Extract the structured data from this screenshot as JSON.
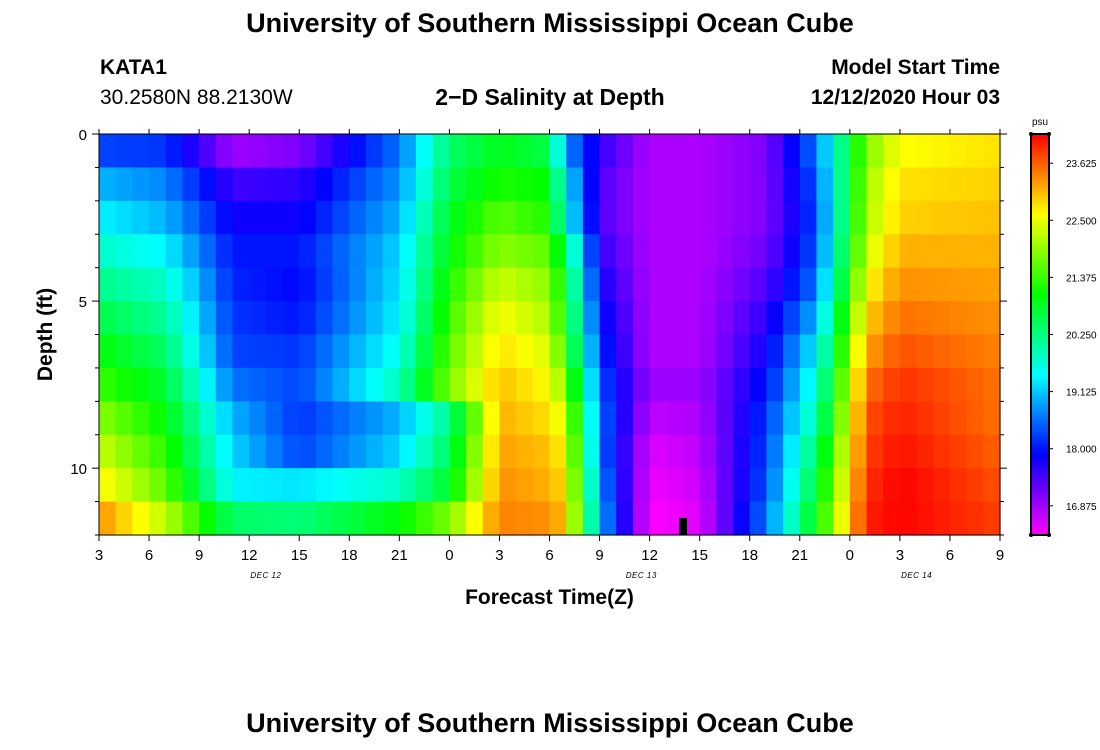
{
  "header": {
    "title": "University of Southern Mississippi Ocean Cube",
    "station_id": "KATA1",
    "station_coords": "30.2580N 88.2130W",
    "plot_title": "2−D Salinity at Depth",
    "model_start_label": "Model Start Time",
    "model_start_value": "12/12/2020 Hour 03"
  },
  "footer": {
    "title": "University of Southern Mississippi Ocean Cube"
  },
  "colors": {
    "marker": "#000000",
    "frame": "#000000"
  },
  "chart_data": {
    "type": "heatmap",
    "title": "2−D Salinity at Depth",
    "xlabel": "Forecast Time(Z)",
    "ylabel": "Depth (ft)",
    "units": "psu",
    "x_range_hours": [
      0,
      54
    ],
    "x_ticks": [
      {
        "h": 0,
        "label": "3"
      },
      {
        "h": 3,
        "label": "6"
      },
      {
        "h": 6,
        "label": "9"
      },
      {
        "h": 9,
        "label": "12"
      },
      {
        "h": 12,
        "label": "15"
      },
      {
        "h": 15,
        "label": "18"
      },
      {
        "h": 18,
        "label": "21"
      },
      {
        "h": 21,
        "label": "0"
      },
      {
        "h": 24,
        "label": "3"
      },
      {
        "h": 27,
        "label": "6"
      },
      {
        "h": 30,
        "label": "9"
      },
      {
        "h": 33,
        "label": "12"
      },
      {
        "h": 36,
        "label": "15"
      },
      {
        "h": 39,
        "label": "18"
      },
      {
        "h": 42,
        "label": "21"
      },
      {
        "h": 45,
        "label": "0"
      },
      {
        "h": 48,
        "label": "3"
      },
      {
        "h": 51,
        "label": "6"
      },
      {
        "h": 54,
        "label": "9"
      }
    ],
    "day_labels": [
      {
        "h": 10,
        "label": "DEC 12"
      },
      {
        "h": 32.5,
        "label": "DEC 13"
      },
      {
        "h": 49,
        "label": "DEC 14"
      }
    ],
    "y_range_ft": [
      0,
      12
    ],
    "y_ticks": [
      0,
      5,
      10
    ],
    "current_time_marker_h": 35,
    "colorbar": {
      "label": "psu",
      "min": 16.3,
      "max": 24.2,
      "ticks": [
        "16.875",
        "18.000",
        "19.125",
        "20.250",
        "21.375",
        "22.500",
        "23.625"
      ]
    },
    "depth_rows_ft": [
      0.5,
      1.5,
      2.5,
      3.5,
      4.5,
      5.5,
      6.5,
      7.5,
      8.5,
      9.5,
      10.5,
      11.5
    ],
    "series": [
      {
        "depth_ft": 0.5,
        "keyframes": [
          [
            0,
            18.3
          ],
          [
            4,
            18.2
          ],
          [
            8,
            16.9
          ],
          [
            12,
            17.1
          ],
          [
            18,
            18.6
          ],
          [
            21,
            20.4
          ],
          [
            24,
            20.9
          ],
          [
            27,
            20.6
          ],
          [
            28,
            18.8
          ],
          [
            30,
            17.6
          ],
          [
            33,
            16.8
          ],
          [
            36,
            16.8
          ],
          [
            40,
            17.1
          ],
          [
            43,
            18.6
          ],
          [
            46,
            21.8
          ],
          [
            48,
            22.6
          ],
          [
            54,
            22.8
          ]
        ]
      },
      {
        "depth_ft": 1.5,
        "keyframes": [
          [
            0,
            19.0
          ],
          [
            4,
            18.7
          ],
          [
            8,
            17.5
          ],
          [
            12,
            17.6
          ],
          [
            18,
            18.8
          ],
          [
            21,
            20.6
          ],
          [
            24,
            21.2
          ],
          [
            27,
            21.0
          ],
          [
            28,
            19.4
          ],
          [
            30,
            17.4
          ],
          [
            33,
            16.8
          ],
          [
            36,
            16.8
          ],
          [
            40,
            17.1
          ],
          [
            43,
            18.4
          ],
          [
            46,
            22.0
          ],
          [
            48,
            22.8
          ],
          [
            54,
            22.9
          ]
        ]
      },
      {
        "depth_ft": 2.5,
        "keyframes": [
          [
            0,
            19.4
          ],
          [
            4,
            19.0
          ],
          [
            8,
            17.8
          ],
          [
            12,
            17.8
          ],
          [
            18,
            19.0
          ],
          [
            21,
            20.8
          ],
          [
            24,
            21.6
          ],
          [
            27,
            21.2
          ],
          [
            28,
            19.6
          ],
          [
            30,
            17.4
          ],
          [
            33,
            16.8
          ],
          [
            36,
            16.8
          ],
          [
            40,
            17.1
          ],
          [
            43,
            18.3
          ],
          [
            46,
            22.1
          ],
          [
            48,
            22.9
          ],
          [
            54,
            23.0
          ]
        ]
      },
      {
        "depth_ft": 3.5,
        "keyframes": [
          [
            0,
            19.8
          ],
          [
            4,
            19.4
          ],
          [
            8,
            18.0
          ],
          [
            12,
            18.0
          ],
          [
            18,
            19.2
          ],
          [
            21,
            21.0
          ],
          [
            24,
            21.9
          ],
          [
            27,
            21.6
          ],
          [
            28,
            20.4
          ],
          [
            30,
            17.6
          ],
          [
            33,
            16.8
          ],
          [
            36,
            16.8
          ],
          [
            40,
            17.2
          ],
          [
            43,
            18.4
          ],
          [
            46,
            22.3
          ],
          [
            48,
            23.1
          ],
          [
            54,
            23.1
          ]
        ]
      },
      {
        "depth_ft": 4.5,
        "keyframes": [
          [
            0,
            20.2
          ],
          [
            4,
            19.8
          ],
          [
            8,
            18.1
          ],
          [
            12,
            17.9
          ],
          [
            18,
            19.3
          ],
          [
            21,
            21.2
          ],
          [
            24,
            22.3
          ],
          [
            27,
            21.9
          ],
          [
            28,
            20.8
          ],
          [
            30,
            17.8
          ],
          [
            33,
            16.8
          ],
          [
            36,
            16.8
          ],
          [
            40,
            17.4
          ],
          [
            43,
            18.6
          ],
          [
            46,
            22.6
          ],
          [
            48,
            23.3
          ],
          [
            54,
            23.2
          ]
        ]
      },
      {
        "depth_ft": 5.5,
        "keyframes": [
          [
            0,
            20.6
          ],
          [
            4,
            20.1
          ],
          [
            8,
            18.2
          ],
          [
            12,
            18.0
          ],
          [
            18,
            19.4
          ],
          [
            21,
            21.4
          ],
          [
            24,
            22.6
          ],
          [
            27,
            22.1
          ],
          [
            28,
            21.0
          ],
          [
            30,
            18.0
          ],
          [
            33,
            16.8
          ],
          [
            36,
            16.8
          ],
          [
            40,
            17.6
          ],
          [
            43,
            19.0
          ],
          [
            46,
            22.9
          ],
          [
            48,
            23.5
          ],
          [
            54,
            23.3
          ]
        ]
      },
      {
        "depth_ft": 6.5,
        "keyframes": [
          [
            0,
            21.0
          ],
          [
            4,
            20.4
          ],
          [
            8,
            18.3
          ],
          [
            12,
            18.2
          ],
          [
            18,
            19.6
          ],
          [
            21,
            21.6
          ],
          [
            24,
            22.8
          ],
          [
            27,
            22.4
          ],
          [
            28,
            21.3
          ],
          [
            30,
            18.2
          ],
          [
            33,
            16.8
          ],
          [
            36,
            16.8
          ],
          [
            40,
            17.8
          ],
          [
            43,
            19.4
          ],
          [
            46,
            23.2
          ],
          [
            48,
            23.7
          ],
          [
            54,
            23.4
          ]
        ]
      },
      {
        "depth_ft": 7.5,
        "keyframes": [
          [
            0,
            21.4
          ],
          [
            4,
            20.7
          ],
          [
            8,
            18.6
          ],
          [
            12,
            18.3
          ],
          [
            18,
            19.9
          ],
          [
            21,
            21.8
          ],
          [
            24,
            23.0
          ],
          [
            27,
            22.6
          ],
          [
            28,
            21.8
          ],
          [
            30,
            18.4
          ],
          [
            33,
            16.9
          ],
          [
            36,
            16.9
          ],
          [
            40,
            18.0
          ],
          [
            43,
            19.7
          ],
          [
            46,
            23.5
          ],
          [
            48,
            23.9
          ],
          [
            54,
            23.5
          ]
        ]
      },
      {
        "depth_ft": 8.5,
        "keyframes": [
          [
            0,
            21.9
          ],
          [
            4,
            21.0
          ],
          [
            8,
            19.0
          ],
          [
            12,
            18.2
          ],
          [
            18,
            19.0
          ],
          [
            21,
            20.2
          ],
          [
            24,
            23.1
          ],
          [
            27,
            22.8
          ],
          [
            28,
            22.3
          ],
          [
            30,
            18.6
          ],
          [
            33,
            16.7
          ],
          [
            36,
            16.8
          ],
          [
            40,
            18.2
          ],
          [
            43,
            20.0
          ],
          [
            46,
            23.7
          ],
          [
            48,
            24.0
          ],
          [
            54,
            23.5
          ]
        ]
      },
      {
        "depth_ft": 9.5,
        "keyframes": [
          [
            0,
            22.3
          ],
          [
            4,
            21.3
          ],
          [
            8,
            19.2
          ],
          [
            12,
            18.3
          ],
          [
            18,
            19.2
          ],
          [
            21,
            20.5
          ],
          [
            24,
            23.2
          ],
          [
            27,
            23.0
          ],
          [
            28,
            22.6
          ],
          [
            30,
            18.6
          ],
          [
            33,
            16.5
          ],
          [
            36,
            16.7
          ],
          [
            40,
            18.3
          ],
          [
            43,
            20.4
          ],
          [
            46,
            23.8
          ],
          [
            48,
            24.1
          ],
          [
            54,
            23.6
          ]
        ]
      },
      {
        "depth_ft": 10.5,
        "keyframes": [
          [
            0,
            22.7
          ],
          [
            4,
            21.6
          ],
          [
            8,
            19.4
          ],
          [
            12,
            19.3
          ],
          [
            18,
            19.8
          ],
          [
            21,
            20.8
          ],
          [
            24,
            23.3
          ],
          [
            27,
            23.1
          ],
          [
            28,
            22.8
          ],
          [
            30,
            18.8
          ],
          [
            33,
            16.4
          ],
          [
            36,
            16.6
          ],
          [
            40,
            18.4
          ],
          [
            43,
            20.7
          ],
          [
            46,
            23.9
          ],
          [
            48,
            24.2
          ],
          [
            54,
            23.7
          ]
        ]
      },
      {
        "depth_ft": 11.5,
        "keyframes": [
          [
            0,
            23.3
          ],
          [
            4,
            22.2
          ],
          [
            8,
            20.4
          ],
          [
            12,
            20.3
          ],
          [
            18,
            21.0
          ],
          [
            21,
            21.8
          ],
          [
            24,
            23.4
          ],
          [
            27,
            23.3
          ],
          [
            28,
            23.0
          ],
          [
            30,
            19.0
          ],
          [
            33,
            16.3
          ],
          [
            36,
            16.5
          ],
          [
            40,
            18.6
          ],
          [
            43,
            21.0
          ],
          [
            46,
            24.0
          ],
          [
            48,
            24.2
          ],
          [
            54,
            23.8
          ]
        ]
      }
    ]
  }
}
